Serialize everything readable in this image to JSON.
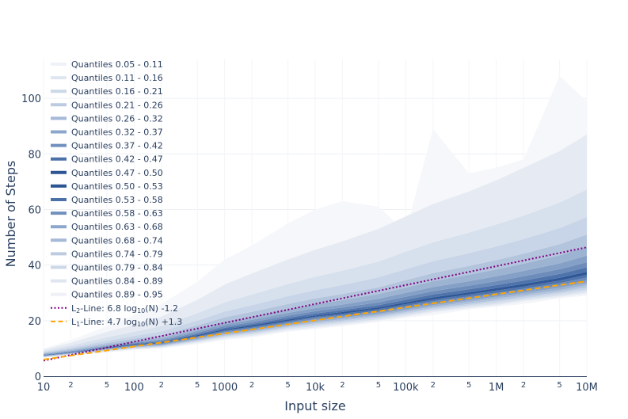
{
  "chart_data": {
    "type": "area",
    "xscale": "log",
    "xlim": [
      10,
      10000000
    ],
    "ylim": [
      0,
      114
    ],
    "grid": true,
    "legend_position": "top-left",
    "xlabel": "Input size",
    "ylabel": "Number of Steps",
    "x_major_ticks": [
      {
        "x": 10,
        "label": "10"
      },
      {
        "x": 100,
        "label": "100"
      },
      {
        "x": 1000,
        "label": "1000"
      },
      {
        "x": 10000,
        "label": "10k"
      },
      {
        "x": 100000,
        "label": "100k"
      },
      {
        "x": 1000000,
        "label": "1M"
      },
      {
        "x": 10000000,
        "label": "10M"
      }
    ],
    "x_minor_ticks": [
      {
        "x": 20,
        "label": "2"
      },
      {
        "x": 50,
        "label": "5"
      },
      {
        "x": 200,
        "label": "2"
      },
      {
        "x": 500,
        "label": "5"
      },
      {
        "x": 2000,
        "label": "2"
      },
      {
        "x": 5000,
        "label": "5"
      },
      {
        "x": 20000,
        "label": "2"
      },
      {
        "x": 50000,
        "label": "5"
      },
      {
        "x": 200000,
        "label": "2"
      },
      {
        "x": 500000,
        "label": "5"
      },
      {
        "x": 2000000,
        "label": "2"
      },
      {
        "x": 5000000,
        "label": "5"
      }
    ],
    "y_ticks": [
      0,
      20,
      40,
      60,
      80,
      100
    ],
    "x": [
      10,
      20,
      50,
      100,
      200,
      500,
      1000,
      2000,
      5000,
      10000,
      20000,
      50000,
      100000,
      200000,
      500000,
      1000000,
      2000000,
      5000000,
      10000000
    ],
    "quantile_levels": [
      0.05,
      0.11,
      0.16,
      0.21,
      0.26,
      0.32,
      0.37,
      0.42,
      0.47,
      0.5,
      0.53,
      0.58,
      0.63,
      0.68,
      0.74,
      0.79,
      0.84,
      0.89,
      0.95
    ],
    "quantile_curves": [
      [
        6.5,
        7.5,
        8.5,
        9.5,
        10,
        11.5,
        13,
        14,
        16,
        17,
        18,
        19.5,
        21,
        22,
        24,
        25,
        26,
        28,
        29
      ],
      [
        6.7,
        7.7,
        8.8,
        9.7,
        10.3,
        12,
        13.5,
        14.5,
        16.5,
        17.5,
        18.5,
        20,
        21.5,
        23,
        24.5,
        25.5,
        27,
        28.5,
        29.8
      ],
      [
        6.8,
        7.8,
        9,
        9.9,
        10.5,
        12.3,
        14,
        15,
        17,
        18,
        19,
        20.5,
        22,
        23.5,
        25,
        26,
        27.5,
        29,
        30.5
      ],
      [
        6.9,
        7.9,
        9.2,
        10.1,
        10.7,
        12.6,
        14.3,
        15.4,
        17.4,
        18.5,
        19.5,
        21,
        22.5,
        24,
        25.5,
        26.7,
        28,
        29.7,
        31.2
      ],
      [
        7.0,
        8.0,
        9.3,
        10.3,
        10.9,
        12.9,
        14.6,
        15.8,
        17.8,
        19,
        20,
        21.5,
        23,
        24.5,
        26,
        27.3,
        28.6,
        30.3,
        32
      ],
      [
        7.1,
        8.1,
        9.5,
        10.5,
        11.1,
        13.2,
        15,
        16.2,
        18.2,
        19.5,
        20.5,
        22,
        23.5,
        25,
        26.7,
        28,
        29.3,
        31,
        32.8
      ],
      [
        7.2,
        8.2,
        9.7,
        10.7,
        11.3,
        13.5,
        15.4,
        16.6,
        18.6,
        20,
        21,
        22.5,
        24,
        25.6,
        27.3,
        28.6,
        30,
        31.8,
        33.6
      ],
      [
        7.3,
        8.3,
        9.8,
        10.9,
        11.5,
        13.8,
        15.8,
        17,
        19,
        20.5,
        21.5,
        23,
        24.6,
        26.2,
        28,
        29.3,
        30.7,
        32.6,
        34.5
      ],
      [
        7.4,
        8.4,
        10,
        11.1,
        11.8,
        14.1,
        16.2,
        17.4,
        19.5,
        21,
        22,
        23.6,
        25.3,
        27,
        28.7,
        30,
        31.5,
        33.5,
        35.5
      ],
      [
        7.5,
        8.5,
        10.1,
        11.3,
        12,
        14.4,
        16.5,
        17.8,
        19.9,
        21.4,
        22.5,
        24.2,
        25.9,
        27.6,
        29.4,
        30.8,
        32.3,
        34.4,
        36.5
      ],
      [
        7.6,
        8.6,
        10.3,
        11.5,
        12.2,
        14.8,
        16.9,
        18.3,
        20.4,
        21.9,
        23.1,
        24.8,
        26.6,
        28.4,
        30.2,
        31.7,
        33.2,
        35.4,
        37.6
      ],
      [
        7.7,
        8.7,
        10.5,
        11.7,
        12.5,
        15.2,
        17.4,
        18.8,
        21,
        22.6,
        23.8,
        25.6,
        27.5,
        29.4,
        31.3,
        32.8,
        34.4,
        36.8,
        39.2
      ],
      [
        7.8,
        8.9,
        10.7,
        12,
        12.9,
        15.7,
        18,
        19.5,
        21.8,
        23.4,
        24.7,
        26.6,
        28.6,
        30.6,
        32.6,
        34.2,
        36,
        38.5,
        41
      ],
      [
        8.0,
        9.1,
        11,
        12.3,
        13.3,
        16.3,
        18.7,
        20.3,
        22.8,
        24.5,
        25.8,
        27.9,
        30,
        32.1,
        34.2,
        36,
        37.9,
        40.6,
        43.4
      ],
      [
        8.2,
        9.4,
        11.4,
        12.8,
        13.9,
        17.1,
        19.7,
        21.5,
        24.1,
        25.9,
        27.4,
        29.6,
        31.9,
        34.2,
        36.5,
        38.4,
        40.5,
        43.5,
        46.6
      ],
      [
        8.4,
        9.8,
        12,
        13.5,
        14.8,
        18.3,
        21.2,
        23.2,
        26,
        28,
        29.6,
        32,
        34.6,
        37.1,
        39.7,
        41.8,
        44.1,
        47.5,
        51
      ],
      [
        8.7,
        10.3,
        12.8,
        14.5,
        16.1,
        20,
        23.3,
        25.6,
        28.8,
        31,
        32.8,
        35.6,
        38.5,
        41.4,
        44.3,
        46.7,
        49.4,
        53.3,
        57.3
      ],
      [
        9.1,
        11.0,
        14,
        16,
        18,
        22.7,
        26.6,
        29.4,
        33.2,
        35.8,
        38,
        41.3,
        44.8,
        48.2,
        51.7,
        54.6,
        57.8,
        62.5,
        67.2
      ],
      [
        9.6,
        12.0,
        16,
        18.5,
        21.5,
        27.5,
        33,
        37,
        42,
        45.5,
        48.5,
        53,
        57.5,
        62,
        66.5,
        70.5,
        75,
        81,
        87
      ]
    ],
    "max_curve": [
      10,
      13,
      18,
      22,
      26,
      34,
      42,
      47,
      55,
      60,
      63,
      61,
      52,
      89,
      73,
      75,
      78,
      108,
      99
    ],
    "series": [
      {
        "name": "Quantiles 0.05 - 0.11"
      },
      {
        "name": "Quantiles 0.11 - 0.16"
      },
      {
        "name": "Quantiles 0.16 - 0.21"
      },
      {
        "name": "Quantiles 0.21 - 0.26"
      },
      {
        "name": "Quantiles 0.26 - 0.32"
      },
      {
        "name": "Quantiles 0.32 - 0.37"
      },
      {
        "name": "Quantiles 0.37 - 0.42"
      },
      {
        "name": "Quantiles 0.42 - 0.47"
      },
      {
        "name": "Quantiles 0.47 - 0.50"
      },
      {
        "name": "Quantiles 0.50 - 0.53"
      },
      {
        "name": "Quantiles 0.53 - 0.58"
      },
      {
        "name": "Quantiles 0.58 - 0.63"
      },
      {
        "name": "Quantiles 0.63 - 0.68"
      },
      {
        "name": "Quantiles 0.68 - 0.74"
      },
      {
        "name": "Quantiles 0.74 - 0.79"
      },
      {
        "name": "Quantiles 0.79 - 0.84"
      },
      {
        "name": "Quantiles 0.84 - 0.89"
      },
      {
        "name": "Quantiles 0.89 - 0.95"
      }
    ],
    "fit_lines": [
      {
        "name_prefix": "L",
        "name_sub": "2",
        "name_mid": "-Line: 6.8 log",
        "name_sub2": "10",
        "name_suffix": "(N) -1.2",
        "slope": 6.8,
        "intercept": -1.2,
        "color": "#800080",
        "dash": "dotted"
      },
      {
        "name_prefix": "L",
        "name_sub": "1",
        "name_mid": "-Line: 4.7 log",
        "name_sub2": "10",
        "name_suffix": "(N) +1.3",
        "slope": 4.7,
        "intercept": 1.3,
        "color": "#ffa500",
        "dash": "dashed"
      }
    ],
    "band_colors": [
      "#f3f5f9",
      "#e6ebf3",
      "#d7e0ed",
      "#c8d4e7",
      "#b3c4dd",
      "#9db3d2",
      "#85a0c6",
      "#6d8cba",
      "#4f73ab",
      "#2f5796",
      "#4f73ab",
      "#6d8cba",
      "#85a0c6",
      "#9db3d2",
      "#b3c4dd",
      "#c8d4e7",
      "#d7e0ed",
      "#e6ebf3"
    ],
    "legend_colors": [
      "#eef1f7",
      "#dfe6f0",
      "#ccd7e8",
      "#bccbe2",
      "#a5b9d8",
      "#8ca6cc",
      "#7090bd",
      "#4c70a8",
      "#2d5593",
      "#2d5593",
      "#4c70a8",
      "#7090bd",
      "#8ca6cc",
      "#a5b9d8",
      "#bccbe2",
      "#ccd7e8",
      "#dfe6f0",
      "#eef1f7"
    ],
    "outer_band_color": "#f5f7fa"
  }
}
